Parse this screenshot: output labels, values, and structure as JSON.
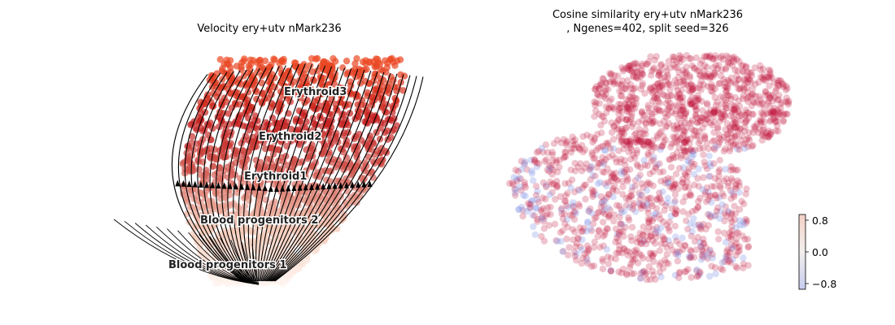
{
  "chart_data": [
    {
      "type": "scatter",
      "title": "Velocity ery+utv nMark236",
      "overlay": "velocity-streamlines",
      "axes": "off",
      "colormap": [
        "#fff5f0",
        "#f4c7b4",
        "#d0564e",
        "#c3201f",
        "#ee4c23"
      ],
      "cluster_labels": [
        "Erythroid3",
        "Erythroid2",
        "Erythroid1",
        "Blood progenitors 2",
        "Blood progenitors 1"
      ]
    },
    {
      "type": "scatter",
      "title": "Cosine similarity ery+utv nMark236\n, Ngenes=402, split seed=326",
      "title_lines": [
        "Cosine similarity ery+utv nMark236",
        ", Ngenes=402, split seed=326"
      ],
      "axes": "off",
      "colorbar": {
        "ticks": [
          "0.8",
          "0.0",
          "−0.8"
        ],
        "tick_values": [
          0.8,
          0.0,
          -0.8
        ],
        "range": [
          -1,
          1
        ],
        "low_color": "#3b4cc0",
        "high_color": "#b40426"
      }
    }
  ]
}
